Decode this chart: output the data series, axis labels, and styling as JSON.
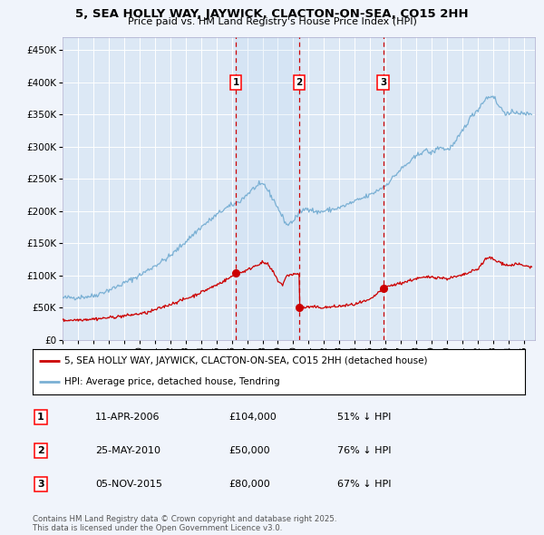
{
  "title": "5, SEA HOLLY WAY, JAYWICK, CLACTON-ON-SEA, CO15 2HH",
  "subtitle": "Price paid vs. HM Land Registry's House Price Index (HPI)",
  "background_color": "#f0f4fb",
  "plot_bg_color": "#dce8f5",
  "grid_color": "#ffffff",
  "hpi_color": "#7ab0d4",
  "price_color": "#cc0000",
  "sale_marker_color": "#cc0000",
  "vline_color": "#cc0000",
  "sale_events": [
    {
      "date_str": "11-APR-2006",
      "date_num": 2006.27,
      "price": 104000,
      "label": "1"
    },
    {
      "date_str": "25-MAY-2010",
      "date_num": 2010.4,
      "price": 50000,
      "label": "2"
    },
    {
      "date_str": "05-NOV-2015",
      "date_num": 2015.84,
      "price": 80000,
      "label": "3"
    }
  ],
  "legend_entries": [
    "5, SEA HOLLY WAY, JAYWICK, CLACTON-ON-SEA, CO15 2HH (detached house)",
    "HPI: Average price, detached house, Tendring"
  ],
  "table_rows": [
    {
      "num": "1",
      "date": "11-APR-2006",
      "price": "£104,000",
      "pct": "51% ↓ HPI"
    },
    {
      "num": "2",
      "date": "25-MAY-2010",
      "price": "£50,000",
      "pct": "76% ↓ HPI"
    },
    {
      "num": "3",
      "date": "05-NOV-2015",
      "price": "£80,000",
      "pct": "67% ↓ HPI"
    }
  ],
  "footnote": "Contains HM Land Registry data © Crown copyright and database right 2025.\nThis data is licensed under the Open Government Licence v3.0.",
  "ylim": [
    0,
    470000
  ],
  "yticks": [
    0,
    50000,
    100000,
    150000,
    200000,
    250000,
    300000,
    350000,
    400000,
    450000
  ],
  "ytick_labels": [
    "£0",
    "£50K",
    "£100K",
    "£150K",
    "£200K",
    "£250K",
    "£300K",
    "£350K",
    "£400K",
    "£450K"
  ],
  "xlim_start": 1995.0,
  "xlim_end": 2025.7
}
